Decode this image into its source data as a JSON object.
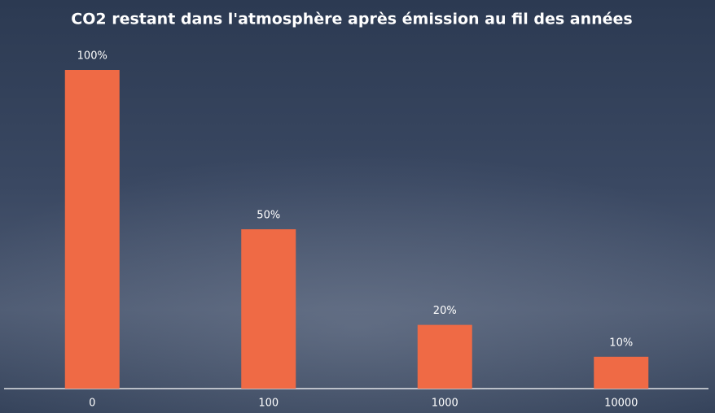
{
  "chart_data": {
    "type": "bar",
    "title": "CO2 restant dans l'atmosphère après émission au fil des années",
    "categories": [
      "0",
      "100",
      "1000",
      "10000"
    ],
    "values": [
      100,
      50,
      20,
      10
    ],
    "value_labels": [
      "100%",
      "50%",
      "20%",
      "10%"
    ],
    "color": "#ef6a45"
  }
}
